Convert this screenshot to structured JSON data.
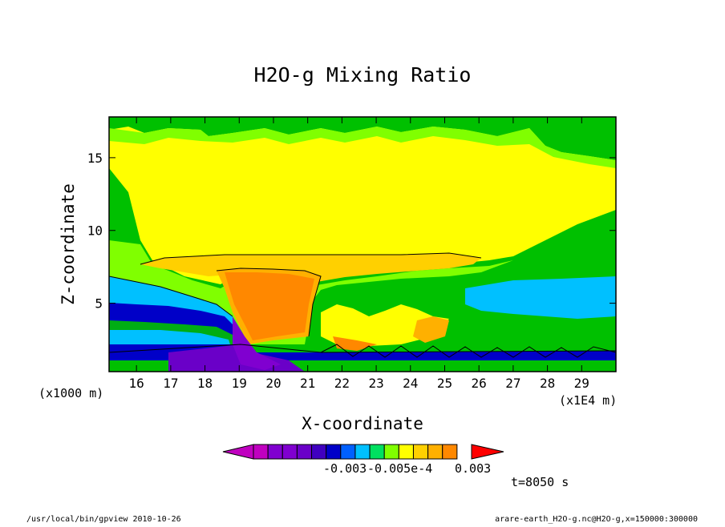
{
  "chart_data": {
    "type": "heatmap",
    "title": "H2O-g Mixing Ratio",
    "xlabel": "X-coordinate",
    "ylabel": "Z-coordinate",
    "x_unit_left": "(x1000 m)",
    "x_unit_right": "(x1E4 m)",
    "xlim": [
      15.2,
      30.0
    ],
    "ylim": [
      0.3,
      17.8
    ],
    "x_ticks": [
      "16",
      "17",
      "18",
      "19",
      "20",
      "21",
      "22",
      "23",
      "24",
      "25",
      "26",
      "27",
      "28",
      "29"
    ],
    "x_tick_values": [
      16,
      17,
      18,
      19,
      20,
      21,
      22,
      23,
      24,
      25,
      26,
      27,
      28,
      29
    ],
    "y_ticks": [
      "5",
      "10",
      "15"
    ],
    "y_tick_values": [
      5,
      10,
      15
    ],
    "colorbar_labels": [
      "-0.003",
      "-0.005e-4",
      "0.003"
    ],
    "colorbar_colors": [
      "#c000c0",
      "#c000c0",
      "#8000d0",
      "#8000d0",
      "#6a00c8",
      "#4000c0",
      "#0000c8",
      "#0060ff",
      "#00c0ff",
      "#00e060",
      "#80ff00",
      "#ffff00",
      "#ffd000",
      "#ffb000",
      "#ff8800",
      "#ff0000"
    ],
    "time_label": "t=8050 s",
    "footer_left": "/usr/local/bin/gpview  2010-10-26",
    "footer_right": "arare-earth_H2O-g.nc@H2O-g,x=150000:300000"
  }
}
